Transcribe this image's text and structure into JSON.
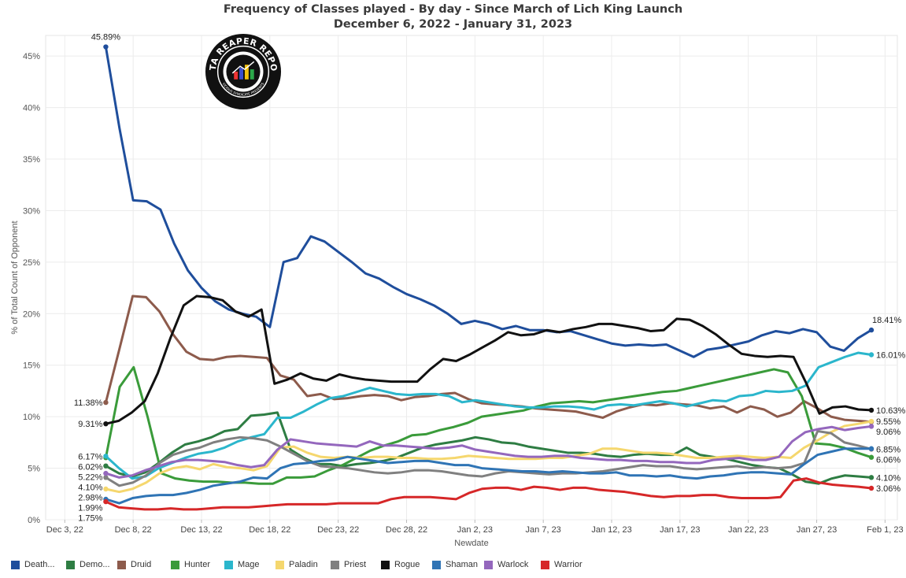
{
  "title": "Frequency of Classes played - By day - Since March of Lich King Launch",
  "subtitle": "December 6, 2022 - January 31, 2023",
  "logo": {
    "text": "DATA REAPER REPORT",
    "subtext": "VICIOUS SYNDICATE PRESENTS"
  },
  "chart_data": {
    "type": "line",
    "title": "Frequency of Classes played - By day - Since March of Lich King Launch",
    "subtitle": "December 6, 2022 - January 31, 2023",
    "xlabel": "Newdate",
    "ylabel": "% of Total Count of Opponent",
    "ylim": [
      0,
      47
    ],
    "yticks": [
      0,
      5,
      10,
      15,
      20,
      25,
      30,
      35,
      40,
      45
    ],
    "ytick_labels": [
      "0%",
      "5%",
      "10%",
      "15%",
      "20%",
      "25%",
      "30%",
      "35%",
      "40%",
      "45%"
    ],
    "xticks": [
      "2022-12-03",
      "2022-12-08",
      "2022-12-13",
      "2022-12-18",
      "2022-12-23",
      "2022-12-28",
      "2023-01-02",
      "2023-01-07",
      "2023-01-12",
      "2023-01-17",
      "2023-01-22",
      "2023-01-27",
      "2023-02-01"
    ],
    "xtick_labels": [
      "Dec 3, 22",
      "Dec 8, 22",
      "Dec 13, 22",
      "Dec 18, 22",
      "Dec 23, 22",
      "Dec 28, 22",
      "Jan 2, 23",
      "Jan 7, 23",
      "Jan 12, 23",
      "Jan 17, 23",
      "Jan 22, 23",
      "Jan 27, 23",
      "Feb 1, 23"
    ],
    "x_start": "2022-12-06",
    "grid": true,
    "legend_position": "bottom",
    "series": [
      {
        "name": "Death...",
        "color": "#1f4e9c",
        "start_label": "45.89%",
        "end_label": "18.41%",
        "values": [
          45.89,
          38,
          31,
          30.9,
          30.1,
          26.8,
          24.2,
          22.5,
          21.2,
          20.4,
          20,
          19.7,
          18.7,
          25,
          25.4,
          27.5,
          27,
          26,
          25,
          23.9,
          23.4,
          22.6,
          21.9,
          21.4,
          20.8,
          20,
          19,
          19.3,
          19,
          18.5,
          18.8,
          18.4,
          18.4,
          18.2,
          18.3,
          17.9,
          17.5,
          17.1,
          16.9,
          17,
          16.9,
          17,
          16.4,
          15.8,
          16.5,
          16.7,
          17,
          17.3,
          17.9,
          18.3,
          18.1,
          18.5,
          18.2,
          16.8,
          16.4,
          17.6,
          18.41
        ]
      },
      {
        "name": "Demo...",
        "color": "#2e7d43",
        "start_label": "5.22%",
        "end_label": "4.10%",
        "values": [
          5.22,
          4.5,
          4.2,
          4.6,
          5.5,
          6.5,
          7.3,
          7.6,
          8,
          8.6,
          8.8,
          10.1,
          10.2,
          10.4,
          6.8,
          6,
          5.4,
          5.4,
          5.2,
          5.4,
          5.5,
          5.7,
          6,
          6.5,
          7,
          7.3,
          7.5,
          7.7,
          8,
          7.8,
          7.5,
          7.4,
          7.1,
          6.9,
          6.7,
          6.5,
          6.5,
          6.4,
          6.2,
          6.1,
          6.3,
          6.4,
          6.3,
          6.3,
          7,
          6.3,
          6.1,
          5.9,
          5.6,
          5.3,
          5.1,
          5,
          4.4,
          3.7,
          3.5,
          4,
          4.3,
          4.2,
          4.1
        ]
      },
      {
        "name": "Druid",
        "color": "#8d5b4c",
        "start_label": "11.38%",
        "end_label": "",
        "values": [
          11.38,
          16.5,
          21.7,
          21.6,
          20.2,
          18,
          16.3,
          15.6,
          15.5,
          15.8,
          15.9,
          15.8,
          15.7,
          14,
          13.6,
          12,
          12.2,
          11.7,
          11.8,
          12,
          12.1,
          12,
          11.6,
          11.9,
          12,
          12.2,
          12.3,
          11.7,
          11.3,
          11.2,
          11.1,
          11,
          10.8,
          10.7,
          10.6,
          10.5,
          10.2,
          9.9,
          10.5,
          10.9,
          11.2,
          11.1,
          11.3,
          11.2,
          11.1,
          10.8,
          11,
          10.4,
          11,
          10.7,
          10,
          10.4,
          11.5,
          10.8,
          10,
          9.7,
          9.6,
          9.5
        ]
      },
      {
        "name": "Hunter",
        "color": "#3a9b3a",
        "start_label": "6.02%",
        "end_label": "6.06%",
        "values": [
          6.02,
          12.9,
          14.8,
          10,
          4.5,
          4,
          3.8,
          3.7,
          3.7,
          3.6,
          3.6,
          3.5,
          3.5,
          4.1,
          4.1,
          4.2,
          4.8,
          5.3,
          6,
          6.7,
          7.2,
          7.6,
          8.2,
          8.3,
          8.7,
          9,
          9.4,
          10,
          10.2,
          10.4,
          10.6,
          11,
          11.3,
          11.4,
          11.5,
          11.4,
          11.6,
          11.8,
          12,
          12.2,
          12.4,
          12.5,
          12.8,
          13.1,
          13.4,
          13.7,
          14,
          14.3,
          14.6,
          14.3,
          12,
          7.4,
          7.3,
          7,
          6.5,
          6.06
        ]
      },
      {
        "name": "Mage",
        "color": "#2bb6cc",
        "start_label": "6.17%",
        "end_label": "16.01%",
        "values": [
          6.17,
          5,
          4,
          4.2,
          5,
          5.5,
          6,
          6.4,
          6.6,
          7,
          7.6,
          8,
          8.3,
          9.9,
          9.9,
          10.5,
          11.2,
          11.8,
          12,
          12.4,
          12.8,
          12.5,
          12.2,
          12.1,
          12.2,
          12.2,
          12,
          11.4,
          11.6,
          11.4,
          11.2,
          11,
          10.9,
          10.9,
          11,
          11,
          10.9,
          10.7,
          11.1,
          11.2,
          11.1,
          11.3,
          11.5,
          11.3,
          11,
          11.3,
          11.6,
          11.5,
          12,
          12.1,
          12.5,
          12.4,
          12.5,
          13,
          14.8,
          15.3,
          15.8,
          16.2,
          16.01
        ]
      },
      {
        "name": "Paladin",
        "color": "#f5d76e",
        "start_label": "2.98%",
        "end_label": "9.55%",
        "values": [
          2.98,
          2.7,
          3,
          3.6,
          4.5,
          5,
          5.2,
          4.9,
          5.4,
          5.1,
          5,
          4.8,
          5.2,
          7,
          7.1,
          6.5,
          6.1,
          6,
          6.1,
          6,
          6.1,
          6.1,
          6,
          6,
          5.9,
          5.9,
          6,
          6.2,
          6.1,
          6,
          5.9,
          5.9,
          5.9,
          6,
          6,
          6.2,
          6.4,
          6.9,
          6.9,
          6.7,
          6.5,
          6.5,
          6.4,
          6.2,
          6,
          6,
          6.1,
          6.2,
          6.1,
          6,
          6.1,
          6,
          7,
          7.7,
          8.5,
          9.1,
          9.3,
          9.55
        ]
      },
      {
        "name": "Priest",
        "color": "#808080",
        "start_label": "4.10%",
        "end_label": "6.85%",
        "values": [
          4.1,
          3.3,
          3.6,
          4.3,
          5.5,
          6.3,
          6.7,
          7,
          7.5,
          7.8,
          8,
          7.9,
          7.7,
          7.1,
          6.4,
          5.7,
          5.2,
          5.1,
          5,
          4.8,
          4.6,
          4.5,
          4.6,
          4.8,
          4.8,
          4.7,
          4.5,
          4.3,
          4.2,
          4.5,
          4.7,
          4.6,
          4.5,
          4.4,
          4.5,
          4.5,
          4.6,
          4.7,
          4.9,
          5.1,
          5.3,
          5.2,
          5.2,
          5,
          4.9,
          5,
          5.1,
          5.2,
          5,
          5.1,
          5,
          5.1,
          5.5,
          8.6,
          8.4,
          7.5,
          7.2,
          6.85
        ]
      },
      {
        "name": "Rogue",
        "color": "#111111",
        "start_label": "9.31%",
        "end_label": "10.63%",
        "values": [
          9.31,
          9.6,
          10.4,
          11.5,
          14.2,
          17.7,
          20.8,
          21.7,
          21.6,
          21.3,
          20.2,
          19.7,
          20.4,
          13.2,
          13.6,
          14.2,
          13.7,
          13.5,
          14.1,
          13.8,
          13.6,
          13.5,
          13.4,
          13.4,
          13.4,
          14.6,
          15.6,
          15.4,
          16,
          16.7,
          17.4,
          18.2,
          17.9,
          18,
          18.4,
          18.2,
          18.5,
          18.7,
          19,
          19,
          18.8,
          18.6,
          18.3,
          18.4,
          19.5,
          19.4,
          18.8,
          18,
          17,
          16.1,
          15.9,
          15.8,
          15.9,
          15.8,
          13.2,
          10.3,
          10.9,
          11,
          10.7,
          10.63
        ]
      },
      {
        "name": "Shaman",
        "color": "#2f74b5",
        "start_label": "1.99%",
        "end_label": "",
        "values": [
          1.99,
          1.6,
          2.1,
          2.3,
          2.4,
          2.4,
          2.6,
          2.9,
          3.3,
          3.5,
          3.7,
          4.1,
          4,
          5,
          5.4,
          5.5,
          5.7,
          5.8,
          6.1,
          5.9,
          5.7,
          5.5,
          5.6,
          5.7,
          5.7,
          5.5,
          5.3,
          5.3,
          5,
          4.9,
          4.8,
          4.7,
          4.7,
          4.6,
          4.7,
          4.6,
          4.5,
          4.5,
          4.6,
          4.3,
          4.3,
          4.2,
          4.3,
          4.1,
          4,
          4.2,
          4.3,
          4.5,
          4.6,
          4.6,
          4.5,
          4.4,
          5.4,
          6.3,
          6.6,
          6.9,
          6.9,
          6.9
        ]
      },
      {
        "name": "Warlock",
        "color": "#9467bd",
        "start_label": "",
        "end_label": "9.06%",
        "values": [
          4.5,
          4.1,
          4.3,
          4.8,
          5.2,
          5.6,
          5.8,
          5.8,
          5.7,
          5.6,
          5.3,
          5.1,
          5.3,
          6.8,
          7.8,
          7.6,
          7.4,
          7.3,
          7.2,
          7.1,
          7.6,
          7.2,
          7.2,
          7.1,
          7,
          6.9,
          7,
          7.2,
          6.8,
          6.6,
          6.4,
          6.2,
          6.1,
          6.1,
          6.2,
          6.2,
          6,
          5.9,
          5.8,
          5.8,
          5.7,
          5.7,
          5.6,
          5.6,
          5.5,
          5.5,
          5.8,
          5.9,
          6,
          5.8,
          5.8,
          6.1,
          7.6,
          8.5,
          8.8,
          9,
          8.7,
          8.9,
          9.06
        ]
      },
      {
        "name": "Warrior",
        "color": "#d62728",
        "start_label": "1.75%",
        "end_label": "3.06%",
        "values": [
          1.75,
          1.2,
          1.1,
          1,
          1,
          1.1,
          1,
          1,
          1.1,
          1.2,
          1.2,
          1.2,
          1.3,
          1.4,
          1.5,
          1.5,
          1.5,
          1.5,
          1.6,
          1.6,
          1.6,
          1.6,
          2,
          2.2,
          2.2,
          2.2,
          2.1,
          2,
          2.6,
          3,
          3.1,
          3.1,
          2.9,
          3.2,
          3.1,
          2.9,
          3.1,
          3.1,
          2.9,
          2.8,
          2.7,
          2.5,
          2.3,
          2.2,
          2.3,
          2.3,
          2.4,
          2.4,
          2.2,
          2.1,
          2.1,
          2.1,
          2.2,
          3.8,
          4,
          3.6,
          3.4,
          3.3,
          3.2,
          3.06
        ]
      }
    ]
  }
}
